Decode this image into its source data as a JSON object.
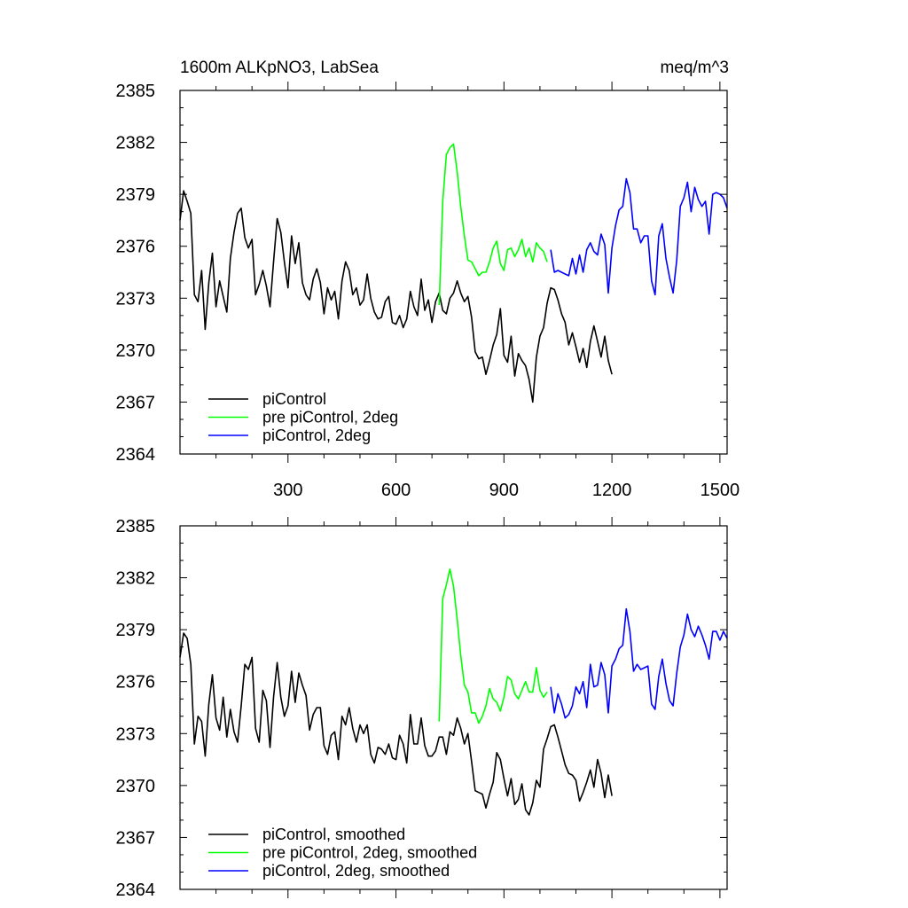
{
  "chart_data": [
    {
      "type": "line",
      "title": "1600m ALKpNO3, LabSea",
      "units": "meq/m^3",
      "xlabel": "",
      "ylabel": "",
      "xlim": [
        0,
        1520
      ],
      "ylim": [
        2364,
        2385
      ],
      "xticks": [
        300,
        600,
        900,
        1200,
        1500
      ],
      "xtick_labels": [
        "300",
        "600",
        "900",
        "1200",
        "1500"
      ],
      "yticks": [
        2364,
        2367,
        2370,
        2373,
        2376,
        2379,
        2382,
        2385
      ],
      "ytick_labels": [
        "2364",
        "2367",
        "2370",
        "2373",
        "2376",
        "2379",
        "2382",
        "2385"
      ],
      "grid": false,
      "legend_position": "bottom-left",
      "series": [
        {
          "name": "piControl",
          "color": "#000000",
          "x": [
            0,
            10,
            20,
            30,
            40,
            50,
            60,
            70,
            80,
            90,
            100,
            110,
            120,
            130,
            140,
            150,
            160,
            170,
            180,
            190,
            200,
            210,
            220,
            230,
            240,
            250,
            260,
            270,
            280,
            290,
            300,
            310,
            320,
            330,
            340,
            350,
            360,
            370,
            380,
            390,
            400,
            410,
            420,
            430,
            440,
            450,
            460,
            470,
            480,
            490,
            500,
            510,
            520,
            530,
            540,
            550,
            560,
            570,
            580,
            590,
            600,
            610,
            620,
            630,
            640,
            650,
            660,
            670,
            680,
            690,
            700,
            710,
            720,
            730,
            740,
            750,
            760,
            770,
            780,
            790,
            800,
            810,
            820,
            830,
            840,
            850,
            860,
            870,
            880,
            890,
            900,
            910,
            920,
            930,
            940,
            950,
            960,
            970,
            980,
            990,
            1000,
            1010,
            1020,
            1030,
            1040,
            1050,
            1060,
            1070,
            1080,
            1090,
            1100,
            1110,
            1120,
            1130,
            1140,
            1150,
            1160,
            1170,
            1180,
            1190,
            1200
          ],
          "values": [
            2377.5,
            2379.2,
            2378.6,
            2377.9,
            2373.2,
            2372.8,
            2374.6,
            2371.2,
            2373.9,
            2375.6,
            2372.5,
            2374.0,
            2373.1,
            2372.2,
            2375.3,
            2376.8,
            2377.9,
            2378.2,
            2376.5,
            2375.9,
            2376.4,
            2373.2,
            2373.8,
            2374.6,
            2373.7,
            2372.5,
            2375.1,
            2377.6,
            2376.8,
            2375.1,
            2373.6,
            2376.6,
            2375.0,
            2376.2,
            2373.9,
            2373.2,
            2372.9,
            2374.1,
            2374.7,
            2373.9,
            2372.1,
            2373.6,
            2372.9,
            2373.4,
            2371.8,
            2374.0,
            2375.1,
            2374.6,
            2373.2,
            2373.6,
            2372.6,
            2372.9,
            2374.4,
            2373.0,
            2372.2,
            2371.8,
            2371.9,
            2372.8,
            2373.1,
            2371.6,
            2371.5,
            2372.0,
            2371.3,
            2371.8,
            2373.4,
            2372.5,
            2372.0,
            2374.1,
            2372.3,
            2372.9,
            2371.6,
            2372.8,
            2373.3,
            2372.3,
            2372.1,
            2373.0,
            2373.3,
            2374.0,
            2373.3,
            2372.8,
            2373.1,
            2371.9,
            2369.9,
            2369.5,
            2369.6,
            2368.6,
            2369.4,
            2370.3,
            2370.9,
            2372.4,
            2369.7,
            2369.3,
            2370.8,
            2368.5,
            2369.8,
            2369.4,
            2369.1,
            2368.3,
            2367.0,
            2369.6,
            2370.8,
            2371.3,
            2372.7,
            2373.6,
            2373.5,
            2372.9,
            2372.1,
            2371.6,
            2370.3,
            2371.0,
            2370.2,
            2369.3,
            2370.1,
            2369.0,
            2370.5,
            2371.4,
            2370.5,
            2369.6,
            2370.8,
            2369.4,
            2368.6
          ]
        },
        {
          "name": "pre piControl, 2deg",
          "color": "#00ff00",
          "x": [
            720,
            730,
            740,
            750,
            760,
            770,
            780,
            790,
            800,
            810,
            820,
            830,
            840,
            850,
            860,
            870,
            880,
            890,
            900,
            910,
            920,
            930,
            940,
            950,
            960,
            970,
            980,
            990,
            1000,
            1010,
            1020
          ],
          "values": [
            2372.6,
            2378.6,
            2381.3,
            2381.7,
            2381.9,
            2380.3,
            2378.3,
            2376.6,
            2375.2,
            2375.1,
            2374.7,
            2374.3,
            2374.5,
            2374.5,
            2375.1,
            2375.9,
            2376.3,
            2375.0,
            2374.6,
            2375.8,
            2375.9,
            2375.4,
            2375.8,
            2376.4,
            2375.4,
            2375.9,
            2375.1,
            2376.2,
            2375.9,
            2375.7,
            2375.1
          ]
        },
        {
          "name": "piControl, 2deg",
          "color": "#0000ff",
          "x": [
            1030,
            1040,
            1050,
            1060,
            1070,
            1080,
            1090,
            1100,
            1110,
            1120,
            1130,
            1140,
            1150,
            1160,
            1170,
            1180,
            1190,
            1200,
            1210,
            1220,
            1230,
            1240,
            1250,
            1260,
            1270,
            1280,
            1290,
            1300,
            1310,
            1320,
            1330,
            1340,
            1350,
            1360,
            1370,
            1380,
            1390,
            1400,
            1410,
            1420,
            1430,
            1440,
            1450,
            1460,
            1470,
            1480,
            1490,
            1500,
            1510,
            1520
          ],
          "values": [
            2375.8,
            2374.5,
            2374.6,
            2374.5,
            2374.4,
            2374.3,
            2375.3,
            2374.4,
            2375.5,
            2374.5,
            2375.8,
            2376.2,
            2375.7,
            2375.5,
            2376.7,
            2376.1,
            2373.3,
            2375.9,
            2377.2,
            2378.1,
            2378.3,
            2379.9,
            2379.1,
            2377.0,
            2377.0,
            2376.2,
            2376.6,
            2376.6,
            2374.0,
            2373.2,
            2376.6,
            2377.3,
            2375.3,
            2374.2,
            2373.3,
            2375.2,
            2378.3,
            2378.8,
            2379.7,
            2378.0,
            2379.4,
            2378.7,
            2378.3,
            2378.6,
            2376.7,
            2379.0,
            2379.1,
            2379.0,
            2378.8,
            2378.2
          ]
        }
      ]
    },
    {
      "type": "line",
      "title": "",
      "xlabel": "",
      "ylabel": "",
      "xlim": [
        0,
        1520
      ],
      "ylim": [
        2364,
        2385
      ],
      "xticks": [
        300,
        600,
        900,
        1200,
        1500
      ],
      "yticks": [
        2364,
        2367,
        2370,
        2373,
        2376,
        2379,
        2382,
        2385
      ],
      "ytick_labels": [
        "2364",
        "2367",
        "2370",
        "2373",
        "2376",
        "2379",
        "2382",
        "2385"
      ],
      "grid": false,
      "legend_position": "bottom-left",
      "series": [
        {
          "name": "piControl, smoothed",
          "color": "#000000",
          "x": [
            0,
            10,
            20,
            30,
            40,
            50,
            60,
            70,
            80,
            90,
            100,
            110,
            120,
            130,
            140,
            150,
            160,
            170,
            180,
            190,
            200,
            210,
            220,
            230,
            240,
            250,
            260,
            270,
            280,
            290,
            300,
            310,
            320,
            330,
            340,
            350,
            360,
            370,
            380,
            390,
            400,
            410,
            420,
            430,
            440,
            450,
            460,
            470,
            480,
            490,
            500,
            510,
            520,
            530,
            540,
            550,
            560,
            570,
            580,
            590,
            600,
            610,
            620,
            630,
            640,
            650,
            660,
            670,
            680,
            690,
            700,
            710,
            720,
            730,
            740,
            750,
            760,
            770,
            780,
            790,
            800,
            810,
            820,
            830,
            840,
            850,
            860,
            870,
            880,
            890,
            900,
            910,
            920,
            930,
            940,
            950,
            960,
            970,
            980,
            990,
            1000,
            1010,
            1020,
            1030,
            1040,
            1050,
            1060,
            1070,
            1080,
            1090,
            1100,
            1110,
            1120,
            1130,
            1140,
            1150,
            1160,
            1170,
            1180,
            1190,
            1200
          ],
          "values": [
            2377.4,
            2378.8,
            2378.5,
            2377.0,
            2372.4,
            2374.0,
            2373.7,
            2371.7,
            2374.7,
            2376.4,
            2373.9,
            2373.2,
            2375.1,
            2372.8,
            2374.4,
            2373.1,
            2372.5,
            2374.6,
            2377.0,
            2376.7,
            2377.4,
            2373.3,
            2372.5,
            2375.5,
            2374.9,
            2372.2,
            2375.1,
            2377.1,
            2375.1,
            2374.0,
            2374.6,
            2376.6,
            2374.8,
            2376.5,
            2375.8,
            2375.2,
            2373.2,
            2374.1,
            2374.5,
            2374.5,
            2372.3,
            2371.8,
            2372.9,
            2373.1,
            2371.5,
            2374.0,
            2373.5,
            2374.5,
            2373.3,
            2372.5,
            2373.5,
            2373.0,
            2373.5,
            2371.8,
            2371.3,
            2372.2,
            2372.1,
            2371.8,
            2372.4,
            2371.6,
            2371.5,
            2372.9,
            2372.4,
            2371.3,
            2374.1,
            2372.4,
            2372.4,
            2373.9,
            2372.3,
            2371.7,
            2371.7,
            2372.0,
            2372.8,
            2372.8,
            2371.8,
            2373.1,
            2372.9,
            2373.9,
            2373.3,
            2372.4,
            2373.0,
            2371.4,
            2369.7,
            2369.6,
            2369.5,
            2368.7,
            2369.5,
            2370.2,
            2371.9,
            2371.5,
            2370.4,
            2369.4,
            2370.4,
            2368.9,
            2369.2,
            2370.1,
            2368.6,
            2368.3,
            2369.0,
            2370.3,
            2369.9,
            2372.1,
            2372.7,
            2373.4,
            2373.5,
            2372.8,
            2372.0,
            2371.2,
            2370.7,
            2370.6,
            2370.3,
            2369.1,
            2369.6,
            2370.2,
            2370.9,
            2369.9,
            2371.5,
            2370.7,
            2369.3,
            2370.6,
            2369.4
          ]
        },
        {
          "name": "pre piControl, 2deg, smoothed",
          "color": "#00ff00",
          "x": [
            720,
            730,
            740,
            750,
            760,
            770,
            780,
            790,
            800,
            810,
            820,
            830,
            840,
            850,
            860,
            870,
            880,
            890,
            900,
            910,
            920,
            930,
            940,
            950,
            960,
            970,
            980,
            990,
            1000,
            1010,
            1020
          ],
          "values": [
            2373.7,
            2380.8,
            2381.6,
            2382.5,
            2381.5,
            2379.6,
            2377.5,
            2375.8,
            2375.4,
            2374.2,
            2374.2,
            2373.6,
            2374.0,
            2374.6,
            2375.6,
            2375.0,
            2374.8,
            2374.3,
            2375.1,
            2376.3,
            2376.1,
            2375.3,
            2375.0,
            2375.5,
            2376.0,
            2375.4,
            2375.4,
            2376.8,
            2375.5,
            2375.1,
            2375.4
          ]
        },
        {
          "name": "piControl, 2deg, smoothed",
          "color": "#0000ff",
          "x": [
            1030,
            1040,
            1050,
            1060,
            1070,
            1080,
            1090,
            1100,
            1110,
            1120,
            1130,
            1140,
            1150,
            1160,
            1170,
            1180,
            1190,
            1200,
            1210,
            1220,
            1230,
            1240,
            1250,
            1260,
            1270,
            1280,
            1290,
            1300,
            1310,
            1320,
            1330,
            1340,
            1350,
            1360,
            1370,
            1380,
            1390,
            1400,
            1410,
            1420,
            1430,
            1440,
            1450,
            1460,
            1470,
            1480,
            1490,
            1500,
            1510,
            1520
          ],
          "values": [
            2375.7,
            2374.2,
            2375.3,
            2374.7,
            2373.9,
            2374.1,
            2374.6,
            2375.7,
            2375.3,
            2376.0,
            2374.5,
            2377.0,
            2375.7,
            2375.8,
            2377.1,
            2376.4,
            2374.2,
            2376.9,
            2377.3,
            2377.9,
            2378.1,
            2380.2,
            2378.9,
            2376.6,
            2377.0,
            2376.7,
            2376.8,
            2376.9,
            2374.7,
            2374.4,
            2376.3,
            2377.3,
            2375.9,
            2374.9,
            2374.6,
            2376.5,
            2378.0,
            2378.7,
            2379.9,
            2379.0,
            2378.6,
            2379.2,
            2378.7,
            2378.1,
            2377.3,
            2378.9,
            2378.9,
            2378.4,
            2378.9,
            2378.5
          ]
        }
      ]
    }
  ]
}
